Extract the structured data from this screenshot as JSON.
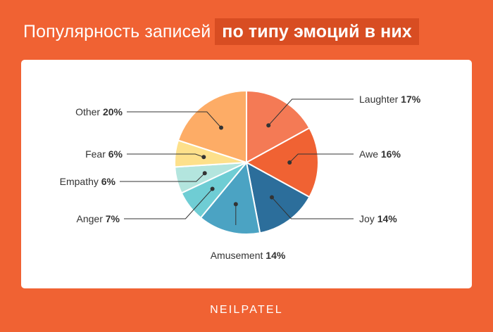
{
  "title": {
    "normal": "Популярность записей",
    "highlight": "по типу эмоций в них"
  },
  "brand": "NEILPATEL",
  "colors": {
    "background": "#F06233",
    "title_highlight_bg": "#D84D22",
    "card": "#FFFFFF"
  },
  "chart_data": {
    "type": "pie",
    "title": "Популярность записей по типу эмоций в них",
    "slices": [
      {
        "label": "Laughter",
        "percent_label": "17%",
        "value": 17,
        "color": "#F47A55"
      },
      {
        "label": "Awe",
        "percent_label": "16%",
        "value": 16,
        "color": "#F06233"
      },
      {
        "label": "Joy",
        "percent_label": "14%",
        "value": 14,
        "color": "#2C6E9B"
      },
      {
        "label": "Amusement",
        "percent_label": "14%",
        "value": 14,
        "color": "#4BA3C3"
      },
      {
        "label": "Anger",
        "percent_label": "7%",
        "value": 7,
        "color": "#6FCDD4"
      },
      {
        "label": "Empathy",
        "percent_label": "6%",
        "value": 6,
        "color": "#B3E5DE"
      },
      {
        "label": "Fear",
        "percent_label": "6%",
        "value": 6,
        "color": "#FDE08B"
      },
      {
        "label": "Other",
        "percent_label": "20%",
        "value": 20,
        "color": "#FDAC66"
      }
    ],
    "start_angle_deg": 0,
    "direction": "clockwise",
    "legend": "none",
    "callout_labels": true
  }
}
